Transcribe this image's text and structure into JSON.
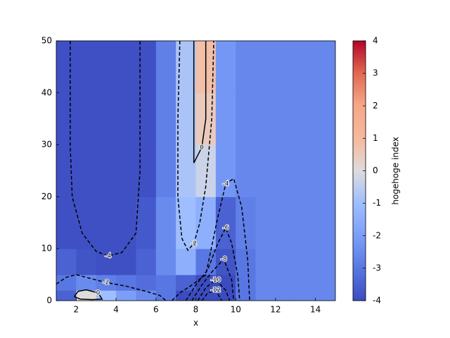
{
  "chart_data": {
    "type": "heatmap",
    "xlabel": "x",
    "colorbar_label": "hogehoge index",
    "xlim": [
      1,
      15
    ],
    "ylim": [
      0,
      50
    ],
    "xticks": [
      2,
      4,
      6,
      8,
      10,
      12,
      14
    ],
    "yticks": [
      0,
      10,
      20,
      30,
      40,
      50
    ],
    "clim": [
      -4,
      4
    ],
    "cticks": [
      -4,
      -3,
      -2,
      -1,
      0,
      1,
      2,
      3,
      4
    ],
    "cmap_colors": [
      "#3b4cc0",
      "#5977e3",
      "#7b9ff9",
      "#9ebeff",
      "#dddcdc",
      "#f7b89c",
      "#f7a889",
      "#e26952",
      "#b40426"
    ],
    "x_edges": [
      1,
      2,
      3,
      4,
      5,
      6,
      7,
      8,
      9,
      10,
      11,
      12,
      13,
      14,
      15
    ],
    "y_edges": [
      0,
      2,
      5,
      10,
      20,
      30,
      40,
      50
    ],
    "values": [
      [
        -3.5,
        0,
        -1,
        -2,
        -2.5,
        -3,
        -4,
        -4,
        -4,
        -3,
        -2.6,
        -2.6,
        -2.6,
        -2.6
      ],
      [
        -3,
        -2.5,
        -2.8,
        -3,
        -3.2,
        -3,
        -3.5,
        -4,
        -4,
        -3,
        -2.6,
        -2.6,
        -2.6,
        -2.6
      ],
      [
        -3.5,
        -3.8,
        -3.9,
        -3.9,
        -3.5,
        -2.5,
        -1.5,
        -3,
        -3.8,
        -3,
        -2.6,
        -2.6,
        -2.6,
        -2.6
      ],
      [
        -3.9,
        -3.9,
        -3.9,
        -3.9,
        -3.7,
        -2.5,
        -1,
        -1.5,
        -3.5,
        -2.8,
        -2.6,
        -2.6,
        -2.6,
        -2.6
      ],
      [
        -3.9,
        -3.9,
        -3.9,
        -3.9,
        -3.9,
        -2.8,
        -0.8,
        -0.3,
        -2.2,
        -2.6,
        -2.6,
        -2.6,
        -2.6,
        -2.6
      ],
      [
        -3.9,
        -3.9,
        -3.9,
        -3.9,
        -3.9,
        -2.8,
        -0.8,
        0.5,
        -2.2,
        -2.6,
        -2.6,
        -2.6,
        -2.6,
        -2.6
      ],
      [
        -3.9,
        -3.9,
        -3.9,
        -3.9,
        -3.9,
        -2.8,
        -0.8,
        0.8,
        -2.2,
        -2.6,
        -2.6,
        -2.6,
        -2.6,
        -2.6
      ]
    ],
    "contours": [
      {
        "level": -4,
        "x": [
          1.7,
          1.7,
          1.8,
          2.3,
          3,
          3.6,
          4.3,
          5,
          5.2,
          5.2
        ],
        "y": [
          50,
          30,
          20,
          13,
          9.5,
          8.6,
          9.3,
          13,
          25,
          50
        ]
      },
      {
        "level": -2,
        "x": [
          7.2,
          7.1,
          7.1,
          7.3,
          7.6,
          7.9,
          8.2,
          8.5,
          8.8,
          8.9
        ],
        "y": [
          50,
          35,
          20,
          12,
          9.7,
          11,
          15,
          22,
          35,
          50
        ]
      },
      {
        "level": 0,
        "x": [
          7.9,
          7.9,
          7.9,
          8.3,
          8.5,
          8.5,
          8.5
        ],
        "y": [
          50,
          40,
          26.5,
          29.5,
          35,
          42,
          50
        ]
      },
      {
        "level": -2,
        "x": [
          1,
          1.5,
          2,
          2.5,
          3.5,
          4.5,
          5.5,
          6.2,
          6.5
        ],
        "y": [
          3.2,
          4.5,
          5,
          4.5,
          3.5,
          2.8,
          1.8,
          1,
          0
        ]
      },
      {
        "level": 0,
        "x": [
          1.9,
          2.1,
          2.5,
          2.8,
          3.1,
          3.3,
          2.8,
          2.2,
          1.9
        ],
        "y": [
          0.8,
          1.8,
          2.1,
          1.8,
          1.5,
          0.3,
          0.2,
          0.3,
          0.8
        ]
      },
      {
        "level": -4,
        "x": [
          6.8,
          7.2,
          7.8,
          8.5,
          9.1,
          9.5,
          9.9,
          10.3,
          10.6,
          10.7
        ],
        "y": [
          0,
          1.5,
          3,
          5,
          16,
          22.5,
          23.5,
          18,
          8,
          0
        ]
      },
      {
        "level": -6,
        "x": [
          7.5,
          8,
          8.6,
          9.1,
          9.5,
          9.8,
          10.1,
          10.2
        ],
        "y": [
          0,
          3,
          6,
          11,
          14,
          11,
          5,
          0
        ]
      },
      {
        "level": -8,
        "x": [
          7.8,
          8.3,
          8.8,
          9.4,
          9.8,
          9.9
        ],
        "y": [
          0,
          3,
          5.5,
          8,
          4,
          0
        ]
      },
      {
        "level": -10,
        "x": [
          8.1,
          8.5,
          9,
          9.5,
          9.7
        ],
        "y": [
          0,
          2.5,
          4,
          2,
          0
        ]
      },
      {
        "level": -12,
        "x": [
          8.3,
          8.6,
          9,
          9.3
        ],
        "y": [
          0,
          1.5,
          2,
          0
        ]
      }
    ]
  }
}
